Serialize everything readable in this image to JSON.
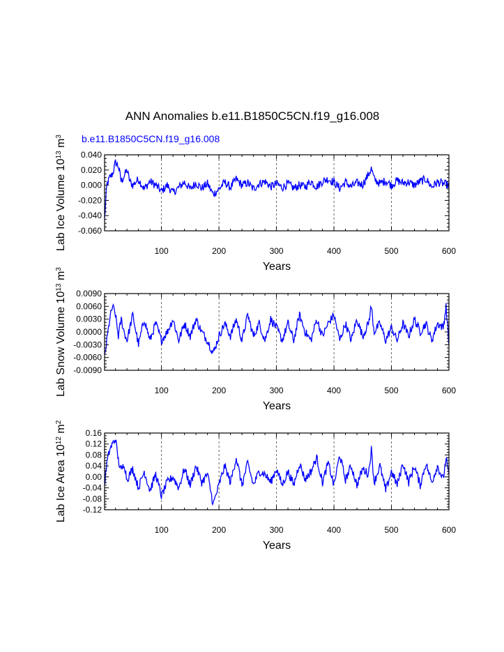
{
  "figure": {
    "title": "ANN Anomalies b.e11.B1850C5CN.f19_g16.008",
    "subtitle": "b.e11.B1850C5CN.f19_g16.008",
    "subtitle_color": "#0000ff",
    "line_color": "#0000ff"
  },
  "chart_data": [
    {
      "type": "line",
      "ylabel": "Lab Ice Volume 10",
      "ylabel_exp": "13",
      "ylabel_unit": " m",
      "ylabel_unit_exp": "3",
      "xlabel": "Years",
      "xlim": [
        1,
        600
      ],
      "ylim": [
        -0.06,
        0.04
      ],
      "xticks": [
        100,
        200,
        300,
        400,
        500,
        600
      ],
      "yticks": [
        -0.06,
        -0.04,
        -0.02,
        0.0,
        0.02,
        0.04
      ],
      "ytick_labels": [
        "-0.060",
        "-0.040",
        "-0.020",
        "0.000",
        "0.020",
        "0.040"
      ],
      "grid": "vertical dashed at x ticks",
      "series": [
        {
          "x": [
            1,
            5,
            10,
            15,
            20,
            25,
            30,
            35,
            40,
            45,
            50,
            60,
            70,
            80,
            90,
            100,
            110,
            120,
            130,
            140,
            150,
            160,
            170,
            180,
            190,
            200,
            210,
            220,
            230,
            240,
            250,
            260,
            270,
            280,
            290,
            300,
            310,
            320,
            330,
            340,
            350,
            360,
            370,
            380,
            390,
            400,
            410,
            420,
            430,
            440,
            450,
            460,
            465,
            470,
            480,
            490,
            500,
            510,
            520,
            530,
            540,
            550,
            560,
            570,
            580,
            590,
            600
          ],
          "values": [
            -0.045,
            0.0,
            0.01,
            0.015,
            0.03,
            0.025,
            0.005,
            0.012,
            0.02,
            0.005,
            0.0,
            0.008,
            -0.005,
            0.005,
            0.0,
            -0.008,
            0.0,
            -0.01,
            -0.003,
            0.004,
            -0.005,
            0.003,
            -0.004,
            0.002,
            -0.012,
            -0.005,
            0.004,
            -0.003,
            0.008,
            0.0,
            0.003,
            -0.005,
            0.002,
            0.005,
            -0.002,
            0.002,
            -0.003,
            0.002,
            -0.004,
            0.0,
            -0.002,
            0.005,
            -0.002,
            0.005,
            0.008,
            0.004,
            -0.004,
            0.004,
            -0.002,
            0.003,
            0.001,
            0.014,
            0.022,
            0.008,
            0.002,
            0.006,
            0.0,
            0.006,
            0.003,
            0.004,
            0.0,
            0.005,
            0.008,
            -0.002,
            0.004,
            0.002,
            0.0
          ]
        }
      ]
    },
    {
      "type": "line",
      "ylabel": "Lab Snow Volume 10",
      "ylabel_exp": "13",
      "ylabel_unit": " m",
      "ylabel_unit_exp": "3",
      "xlabel": "Years",
      "xlim": [
        1,
        600
      ],
      "ylim": [
        -0.009,
        0.009
      ],
      "xticks": [
        100,
        200,
        300,
        400,
        500,
        600
      ],
      "yticks": [
        -0.009,
        -0.006,
        -0.003,
        0.0,
        0.003,
        0.006,
        0.009
      ],
      "ytick_labels": [
        "-0.0090",
        "-0.0060",
        "-0.0030",
        "0.0000",
        "0.0030",
        "0.0060",
        "0.0090"
      ],
      "grid": "vertical dashed at x ticks",
      "series": [
        {
          "x": [
            1,
            5,
            10,
            15,
            20,
            25,
            30,
            35,
            40,
            50,
            60,
            70,
            80,
            90,
            100,
            110,
            120,
            130,
            140,
            150,
            160,
            170,
            180,
            190,
            200,
            210,
            220,
            230,
            240,
            250,
            260,
            270,
            280,
            290,
            300,
            310,
            320,
            330,
            340,
            350,
            360,
            370,
            380,
            390,
            400,
            410,
            420,
            430,
            440,
            450,
            460,
            465,
            470,
            480,
            490,
            500,
            510,
            520,
            530,
            540,
            550,
            560,
            570,
            580,
            590,
            595,
            600
          ],
          "values": [
            -0.006,
            -0.002,
            0.003,
            0.006,
            0.004,
            -0.001,
            0.003,
            0.0,
            -0.002,
            0.004,
            -0.003,
            0.003,
            -0.002,
            0.002,
            -0.002,
            0.0,
            0.003,
            -0.002,
            0.002,
            -0.001,
            0.003,
            0.0,
            -0.002,
            -0.005,
            -0.001,
            0.002,
            -0.001,
            0.003,
            -0.002,
            0.004,
            -0.001,
            0.002,
            -0.002,
            0.003,
            0.001,
            -0.002,
            0.002,
            -0.002,
            0.004,
            0.0,
            -0.002,
            0.003,
            -0.001,
            0.002,
            0.004,
            -0.002,
            0.002,
            -0.002,
            0.003,
            -0.001,
            0.002,
            0.006,
            0.0,
            0.002,
            -0.002,
            0.001,
            -0.002,
            0.002,
            -0.001,
            0.003,
            0.0,
            0.002,
            -0.002,
            0.002,
            0.001,
            0.006,
            -0.003
          ]
        }
      ]
    },
    {
      "type": "line",
      "ylabel": "Lab Ice Area 10",
      "ylabel_exp": "12",
      "ylabel_unit": " m",
      "ylabel_unit_exp": "2",
      "xlabel": "Years",
      "xlim": [
        1,
        600
      ],
      "ylim": [
        -0.12,
        0.16
      ],
      "xticks": [
        100,
        200,
        300,
        400,
        500,
        600
      ],
      "yticks": [
        -0.12,
        -0.08,
        -0.04,
        0.0,
        0.04,
        0.08,
        0.12,
        0.16
      ],
      "ytick_labels": [
        "-0.12",
        "-0.08",
        "-0.04",
        "0.00",
        "0.04",
        "0.08",
        "0.12",
        "0.16"
      ],
      "grid": "vertical dashed at x ticks",
      "series": [
        {
          "x": [
            1,
            5,
            10,
            15,
            20,
            25,
            30,
            35,
            40,
            50,
            60,
            70,
            80,
            90,
            100,
            110,
            120,
            130,
            140,
            150,
            160,
            170,
            180,
            190,
            200,
            210,
            220,
            230,
            240,
            250,
            260,
            270,
            280,
            290,
            300,
            310,
            320,
            330,
            340,
            350,
            360,
            370,
            380,
            390,
            400,
            410,
            420,
            430,
            440,
            450,
            460,
            465,
            470,
            480,
            490,
            500,
            510,
            520,
            530,
            540,
            550,
            560,
            570,
            580,
            590,
            595,
            600
          ],
          "values": [
            -0.03,
            0.05,
            0.1,
            0.12,
            0.14,
            0.06,
            0.02,
            0.05,
            -0.01,
            0.03,
            -0.04,
            0.02,
            -0.05,
            0.01,
            -0.07,
            -0.02,
            0.0,
            -0.04,
            0.03,
            -0.03,
            0.04,
            -0.02,
            0.01,
            -0.1,
            -0.03,
            0.04,
            -0.02,
            0.07,
            -0.03,
            0.05,
            -0.03,
            0.02,
            0.01,
            -0.02,
            0.03,
            -0.03,
            0.02,
            -0.03,
            0.05,
            -0.01,
            0.02,
            0.07,
            -0.02,
            0.05,
            -0.03,
            0.08,
            -0.01,
            0.04,
            -0.03,
            0.03,
            0.01,
            0.1,
            -0.02,
            0.04,
            -0.05,
            0.02,
            -0.03,
            0.05,
            -0.02,
            0.04,
            -0.03,
            0.05,
            -0.02,
            0.04,
            -0.01,
            0.07,
            0.0
          ]
        }
      ]
    }
  ]
}
